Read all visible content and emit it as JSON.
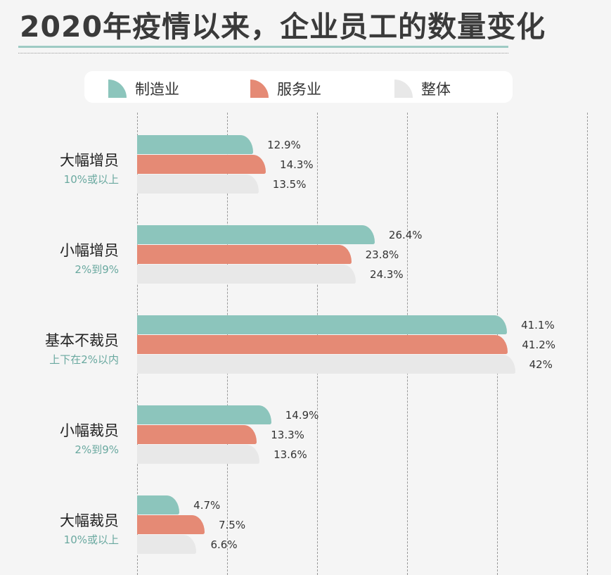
{
  "title": "2020年疫情以来，企业员工的数量变化",
  "colors": {
    "manufacturing": "#8cc5bc",
    "service": "#e58a75",
    "overall": "#e8e8e8"
  },
  "chart_data": {
    "type": "bar",
    "orientation": "horizontal",
    "title": "2020年疫情以来，企业员工的数量变化",
    "legend": [
      "制造业",
      "服务业",
      "整体"
    ],
    "legend_position": "top",
    "categories": [
      {
        "label": "大幅增员",
        "sub": "10%或以上"
      },
      {
        "label": "小幅增员",
        "sub": "2%到9%"
      },
      {
        "label": "基本不裁员",
        "sub": "上下在2%以内"
      },
      {
        "label": "小幅裁员",
        "sub": "2%到9%"
      },
      {
        "label": "大幅裁员",
        "sub": "10%或以上"
      }
    ],
    "series": [
      {
        "name": "制造业",
        "values": [
          12.9,
          26.4,
          41.1,
          14.9,
          4.7
        ],
        "labels": [
          "12.9%",
          "26.4%",
          "41.1%",
          "14.9%",
          "4.7%"
        ]
      },
      {
        "name": "服务业",
        "values": [
          14.3,
          23.8,
          41.2,
          13.3,
          7.5
        ],
        "labels": [
          "14.3%",
          "23.8%",
          "41.2%",
          "13.3%",
          "7.5%"
        ]
      },
      {
        "name": "整体",
        "values": [
          13.5,
          24.3,
          42,
          13.6,
          6.6
        ],
        "labels": [
          "13.5%",
          "24.3%",
          "42%",
          "13.6%",
          "6.6%"
        ]
      }
    ],
    "xlim": [
      0,
      50
    ],
    "grid": true
  }
}
